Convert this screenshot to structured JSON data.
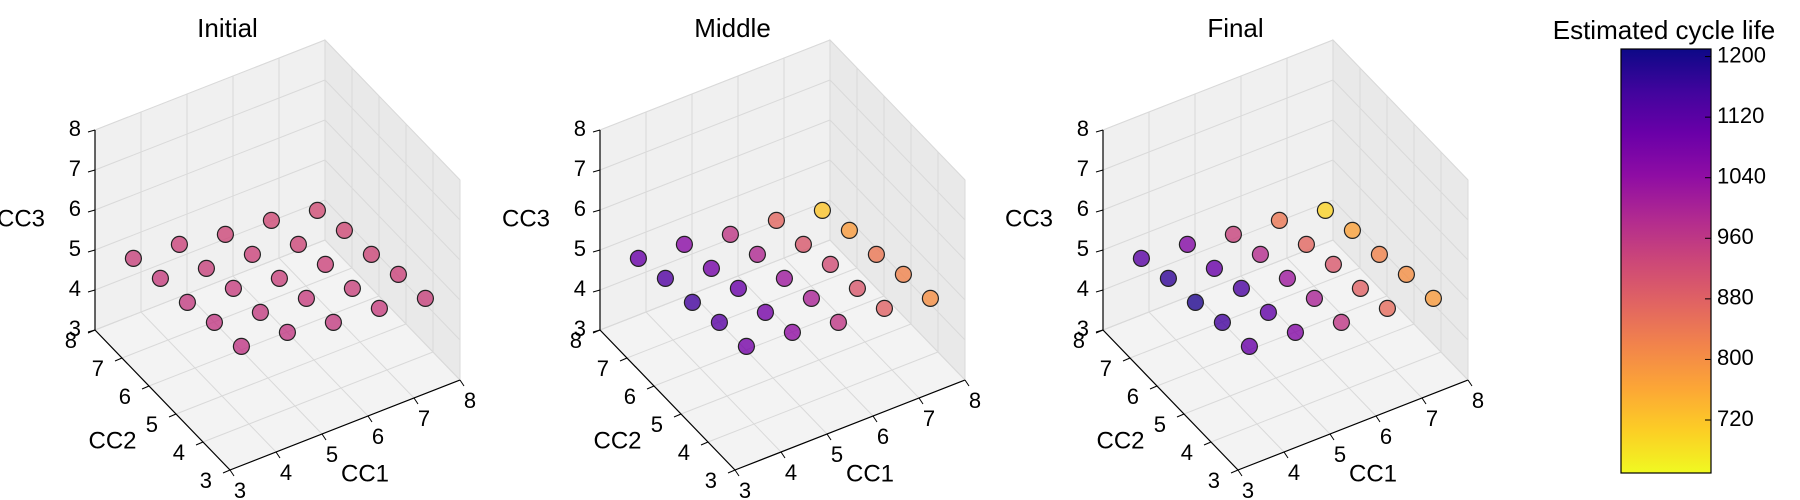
{
  "chart_data": [
    {
      "type": "scatter3d",
      "title": "Initial",
      "xlabel": "CC1",
      "ylabel": "CC2",
      "zlabel": "CC3",
      "x": [
        3.6,
        3.6,
        3.6,
        3.6,
        3.6,
        4.6,
        4.6,
        4.6,
        4.6,
        4.6,
        5.6,
        5.6,
        5.6,
        5.6,
        5.6,
        6.6,
        6.6,
        6.6,
        6.6,
        6.6,
        7.6,
        7.6,
        7.6,
        7.6,
        7.6
      ],
      "y": [
        3.6,
        4.6,
        5.6,
        6.6,
        7.6,
        3.6,
        4.6,
        5.6,
        6.6,
        7.6,
        3.6,
        4.6,
        5.6,
        6.6,
        7.6,
        3.6,
        4.6,
        5.6,
        6.6,
        7.6,
        3.6,
        4.6,
        5.6,
        6.6,
        7.6
      ],
      "z": [
        5.4,
        5.3,
        5.1,
        5.0,
        4.8,
        5.3,
        5.1,
        5.0,
        4.8,
        4.7,
        5.1,
        5.0,
        4.8,
        4.7,
        4.5,
        5.0,
        4.8,
        4.7,
        4.5,
        4.4,
        4.8,
        4.7,
        4.5,
        4.4,
        4.2
      ],
      "c": [
        960,
        955,
        950,
        945,
        940,
        955,
        950,
        945,
        940,
        935,
        950,
        945,
        940,
        935,
        930,
        945,
        940,
        935,
        930,
        925,
        940,
        935,
        930,
        925,
        920
      ],
      "xlim": [
        3,
        8
      ],
      "ylim": [
        3,
        8
      ],
      "zlim": [
        3,
        8
      ],
      "xticks": [
        3,
        4,
        5,
        6,
        7,
        8
      ],
      "yticks": [
        3,
        4,
        5,
        6,
        7,
        8
      ],
      "zticks": [
        3,
        4,
        5,
        6,
        7,
        8
      ],
      "grid": true
    },
    {
      "type": "scatter3d",
      "title": "Middle",
      "xlabel": "CC1",
      "ylabel": "CC2",
      "zlabel": "CC3",
      "x": [
        3.6,
        3.6,
        3.6,
        3.6,
        3.6,
        4.6,
        4.6,
        4.6,
        4.6,
        4.6,
        5.6,
        5.6,
        5.6,
        5.6,
        5.6,
        6.6,
        6.6,
        6.6,
        6.6,
        6.6,
        7.6,
        7.6,
        7.6,
        7.6,
        7.6
      ],
      "y": [
        3.6,
        4.6,
        5.6,
        6.6,
        7.6,
        3.6,
        4.6,
        5.6,
        6.6,
        7.6,
        3.6,
        4.6,
        5.6,
        6.6,
        7.6,
        3.6,
        4.6,
        5.6,
        6.6,
        7.6,
        3.6,
        4.6,
        5.6,
        6.6,
        7.6
      ],
      "z": [
        5.4,
        5.3,
        5.1,
        5.0,
        4.8,
        5.3,
        5.1,
        5.0,
        4.8,
        4.7,
        5.1,
        5.0,
        4.8,
        4.7,
        4.5,
        5.0,
        4.8,
        4.7,
        4.5,
        4.4,
        4.8,
        4.7,
        4.5,
        4.4,
        4.2
      ],
      "c": [
        1080,
        1120,
        1150,
        1130,
        1100,
        1040,
        1080,
        1100,
        1080,
        1050,
        960,
        1000,
        1020,
        990,
        960,
        880,
        900,
        920,
        900,
        870,
        800,
        820,
        840,
        780,
        720
      ],
      "xlim": [
        3,
        8
      ],
      "ylim": [
        3,
        8
      ],
      "zlim": [
        3,
        8
      ],
      "xticks": [
        3,
        4,
        5,
        6,
        7,
        8
      ],
      "yticks": [
        3,
        4,
        5,
        6,
        7,
        8
      ],
      "zticks": [
        3,
        4,
        5,
        6,
        7,
        8
      ],
      "grid": true
    },
    {
      "type": "scatter3d",
      "title": "Final",
      "xlabel": "CC1",
      "ylabel": "CC2",
      "zlabel": "CC3",
      "x": [
        3.6,
        3.6,
        3.6,
        3.6,
        3.6,
        4.6,
        4.6,
        4.6,
        4.6,
        4.6,
        5.6,
        5.6,
        5.6,
        5.6,
        5.6,
        6.6,
        6.6,
        6.6,
        6.6,
        6.6,
        7.6,
        7.6,
        7.6,
        7.6,
        7.6
      ],
      "y": [
        3.6,
        4.6,
        5.6,
        6.6,
        7.6,
        3.6,
        4.6,
        5.6,
        6.6,
        7.6,
        3.6,
        4.6,
        5.6,
        6.6,
        7.6,
        3.6,
        4.6,
        5.6,
        6.6,
        7.6,
        3.6,
        4.6,
        5.6,
        6.6,
        7.6
      ],
      "z": [
        5.4,
        5.3,
        5.1,
        5.0,
        4.8,
        5.3,
        5.1,
        5.0,
        4.8,
        4.7,
        5.1,
        5.0,
        4.8,
        4.7,
        4.5,
        5.0,
        4.8,
        4.7,
        4.5,
        4.4,
        4.8,
        4.7,
        4.5,
        4.4,
        4.2
      ],
      "c": [
        1100,
        1150,
        1190,
        1170,
        1120,
        1060,
        1110,
        1140,
        1100,
        1060,
        960,
        1000,
        1020,
        980,
        940,
        860,
        880,
        900,
        870,
        840,
        780,
        800,
        820,
        770,
        700
      ],
      "xlim": [
        3,
        8
      ],
      "ylim": [
        3,
        8
      ],
      "zlim": [
        3,
        8
      ],
      "xticks": [
        3,
        4,
        5,
        6,
        7,
        8
      ],
      "yticks": [
        3,
        4,
        5,
        6,
        7,
        8
      ],
      "zticks": [
        3,
        4,
        5,
        6,
        7,
        8
      ],
      "grid": true
    }
  ],
  "colorbar": {
    "title": "Estimated cycle life",
    "colormap": "plasma_r",
    "clim": [
      650,
      1210
    ],
    "ticks": [
      720,
      800,
      880,
      960,
      1040,
      1120,
      1200
    ]
  }
}
